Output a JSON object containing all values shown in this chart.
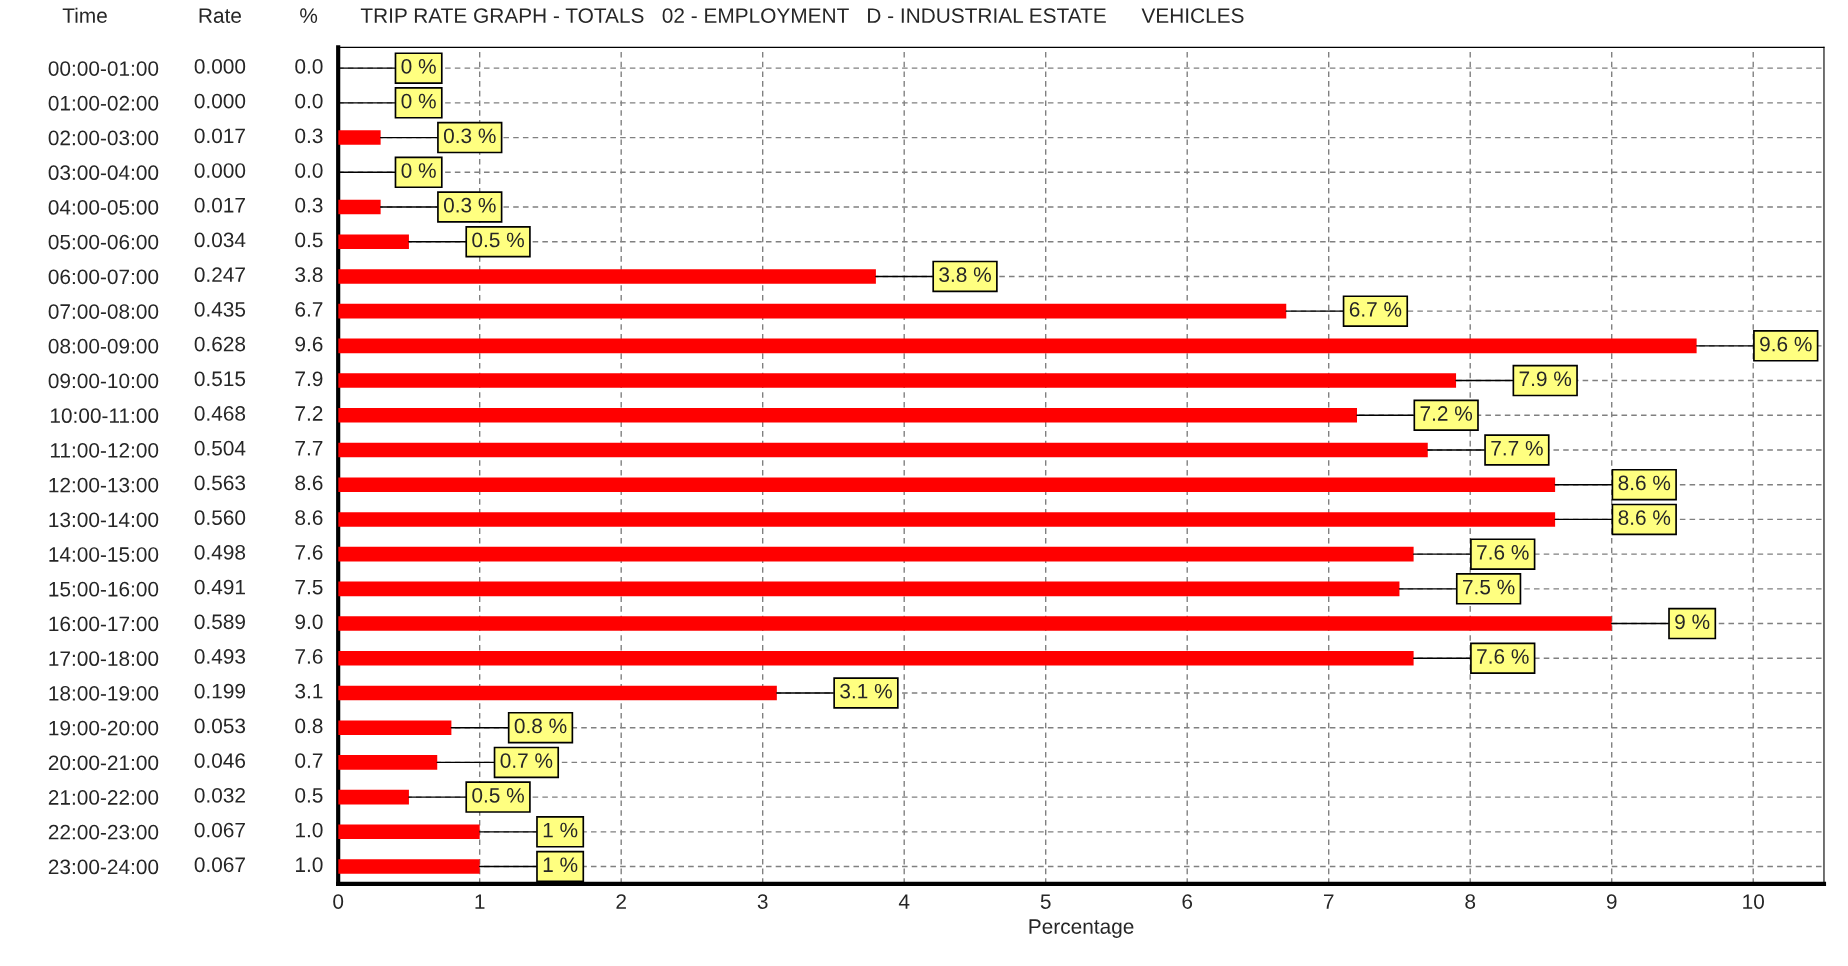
{
  "chart_data": {
    "type": "bar",
    "orientation": "horizontal",
    "title": "TRIP RATE GRAPH - TOTALS   02 - EMPLOYMENT   D - INDUSTRIAL ESTATE      VEHICLES",
    "xlabel": "Percentage",
    "categories": [
      "00:00-01:00",
      "01:00-02:00",
      "02:00-03:00",
      "03:00-04:00",
      "04:00-05:00",
      "05:00-06:00",
      "06:00-07:00",
      "07:00-08:00",
      "08:00-09:00",
      "09:00-10:00",
      "10:00-11:00",
      "11:00-12:00",
      "12:00-13:00",
      "13:00-14:00",
      "14:00-15:00",
      "15:00-16:00",
      "16:00-17:00",
      "17:00-18:00",
      "18:00-19:00",
      "19:00-20:00",
      "20:00-21:00",
      "21:00-22:00",
      "22:00-23:00",
      "23:00-24:00"
    ],
    "values": [
      0.0,
      0.0,
      0.3,
      0.0,
      0.3,
      0.5,
      3.8,
      6.7,
      9.6,
      7.9,
      7.2,
      7.7,
      8.6,
      8.6,
      7.6,
      7.5,
      9.0,
      7.6,
      3.1,
      0.8,
      0.7,
      0.5,
      1.0,
      1.0
    ],
    "value_labels": [
      "0 %",
      "0 %",
      "0.3 %",
      "0 %",
      "0.3 %",
      "0.5 %",
      "3.8 %",
      "6.7 %",
      "9.6 %",
      "7.9 %",
      "7.2 %",
      "7.7 %",
      "8.6 %",
      "8.6 %",
      "7.6 %",
      "7.5 %",
      "9 %",
      "7.6 %",
      "3.1 %",
      "0.8 %",
      "0.7 %",
      "0.5 %",
      "1 %",
      "1 %"
    ],
    "color": "#ff0000",
    "xlim": [
      0,
      10.5
    ],
    "xticks": [
      0,
      1,
      2,
      3,
      4,
      5,
      6,
      7,
      8,
      9,
      10
    ],
    "grid": true,
    "annotations": [
      "Time",
      "Rate",
      "%",
      "0.000",
      "0.000",
      "0.017",
      "0.000",
      "0.017",
      "0.034",
      "0.247",
      "0.435",
      "0.628",
      "0.515",
      "0.468",
      "0.504",
      "0.563",
      "0.560",
      "0.498",
      "0.491",
      "0.589",
      "0.493",
      "0.199",
      "0.053",
      "0.046",
      "0.032",
      "0.067",
      "0.067",
      "0.0",
      "0.0",
      "0.3",
      "0.0",
      "0.3",
      "0.5",
      "3.8",
      "6.7",
      "9.6",
      "7.9",
      "7.2",
      "7.7",
      "8.6",
      "8.6",
      "7.6",
      "7.5",
      "9.0",
      "7.6",
      "3.1",
      "0.8",
      "0.7",
      "0.5",
      "1.0",
      "1.0"
    ]
  }
}
